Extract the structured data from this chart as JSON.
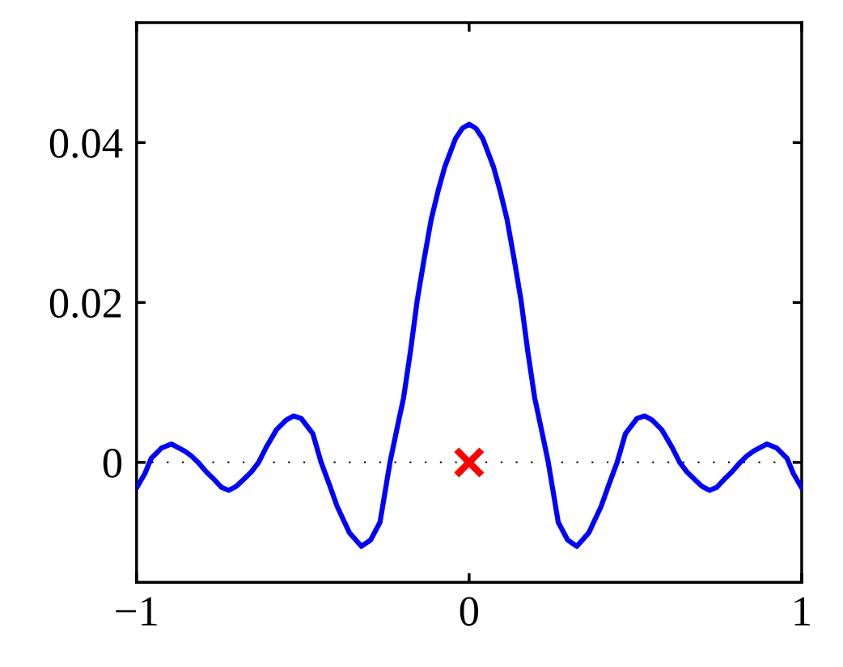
{
  "chart_data": {
    "type": "line",
    "xlim": [
      -1,
      1
    ],
    "ylim": [
      -0.015,
      0.055
    ],
    "xticks": [
      {
        "value": -1,
        "label": "−1"
      },
      0,
      1
    ],
    "yticks": [
      0,
      0.02,
      0.04
    ],
    "grid": false,
    "legend": false,
    "line_style": "solid",
    "marker": "none",
    "ref_lines": [
      {
        "axis": "y",
        "value": 0,
        "color": "#000000",
        "line_style": "dotted"
      }
    ],
    "series": [
      {
        "color": "#0000ff",
        "x": [
          -1,
          -0.975,
          -0.956,
          -0.925,
          -0.895,
          -0.855,
          -0.835,
          -0.815,
          -0.79,
          -0.77,
          -0.745,
          -0.723,
          -0.7,
          -0.68,
          -0.655,
          -0.633,
          -0.61,
          -0.579,
          -0.55,
          -0.528,
          -0.505,
          -0.47,
          -0.445,
          -0.42,
          -0.397,
          -0.36,
          -0.324,
          -0.296,
          -0.268,
          -0.238,
          -0.218,
          -0.197,
          -0.176,
          -0.156,
          -0.135,
          -0.114,
          -0.093,
          -0.073,
          -0.041,
          -0.02,
          0,
          0.02,
          0.041,
          0.073,
          0.093,
          0.114,
          0.135,
          0.156,
          0.176,
          0.197,
          0.218,
          0.238,
          0.268,
          0.296,
          0.324,
          0.36,
          0.397,
          0.42,
          0.445,
          0.47,
          0.505,
          0.528,
          0.55,
          0.579,
          0.61,
          0.633,
          0.655,
          0.68,
          0.7,
          0.723,
          0.745,
          0.77,
          0.79,
          0.815,
          0.835,
          0.855,
          0.895,
          0.925,
          0.956,
          0.975,
          1
        ],
        "values": [
          -0.0032,
          -0.0014,
          0.0005,
          0.0018,
          0.0023,
          0.0014,
          0.0008,
          0,
          -0.0012,
          -0.002,
          -0.0031,
          -0.0035,
          -0.003,
          -0.0022,
          -0.0012,
          0,
          0.0019,
          0.0041,
          0.0053,
          0.0058,
          0.0055,
          0.0036,
          0,
          -0.0028,
          -0.0055,
          -0.0088,
          -0.0105,
          -0.0097,
          -0.0075,
          0,
          0.004,
          0.0081,
          0.014,
          0.0203,
          0.0255,
          0.0304,
          0.034,
          0.037,
          0.0405,
          0.0418,
          0.0423,
          0.0418,
          0.0405,
          0.037,
          0.034,
          0.0304,
          0.0255,
          0.0203,
          0.014,
          0.0081,
          0.004,
          0,
          -0.0075,
          -0.0097,
          -0.0105,
          -0.0088,
          -0.0055,
          -0.0028,
          0,
          0.0036,
          0.0055,
          0.0058,
          0.0053,
          0.0041,
          0.0019,
          0,
          -0.0012,
          -0.0022,
          -0.003,
          -0.0035,
          -0.0031,
          -0.002,
          -0.0012,
          0,
          0.0008,
          0.0014,
          0.0023,
          0.0018,
          0.0005,
          -0.0014,
          -0.0032
        ]
      },
      {
        "type": "scatter",
        "color": "#ff0000",
        "marker": "cross",
        "x": [
          0
        ],
        "values": [
          0
        ]
      }
    ]
  }
}
